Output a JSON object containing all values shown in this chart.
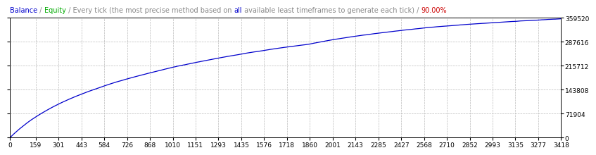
{
  "title_parts": [
    {
      "text": "Balance",
      "color": "#0000CC"
    },
    {
      "text": " / ",
      "color": "#888888"
    },
    {
      "text": "Equity",
      "color": "#00AA00"
    },
    {
      "text": " / Every tick (the most precise method based on ",
      "color": "#888888"
    },
    {
      "text": "all",
      "color": "#0000CC"
    },
    {
      "text": " available least timeframes to generate each tick) / ",
      "color": "#888888"
    },
    {
      "text": "90.00%",
      "color": "#CC0000"
    }
  ],
  "x_ticks": [
    0,
    159,
    301,
    443,
    584,
    726,
    868,
    1010,
    1151,
    1293,
    1435,
    1576,
    1718,
    1860,
    2001,
    2143,
    2285,
    2427,
    2568,
    2710,
    2852,
    2993,
    3135,
    3277,
    3418
  ],
  "y_ticks_right": [
    0,
    71904,
    143808,
    215712,
    287616,
    359520
  ],
  "x_max": 3418,
  "y_max": 359520,
  "line_color": "#0000CC",
  "background_color": "#FFFFFF",
  "grid_color": "#BBBBBB",
  "border_color": "#000000",
  "title_fontsize": 7.0,
  "tick_fontsize": 6.5
}
